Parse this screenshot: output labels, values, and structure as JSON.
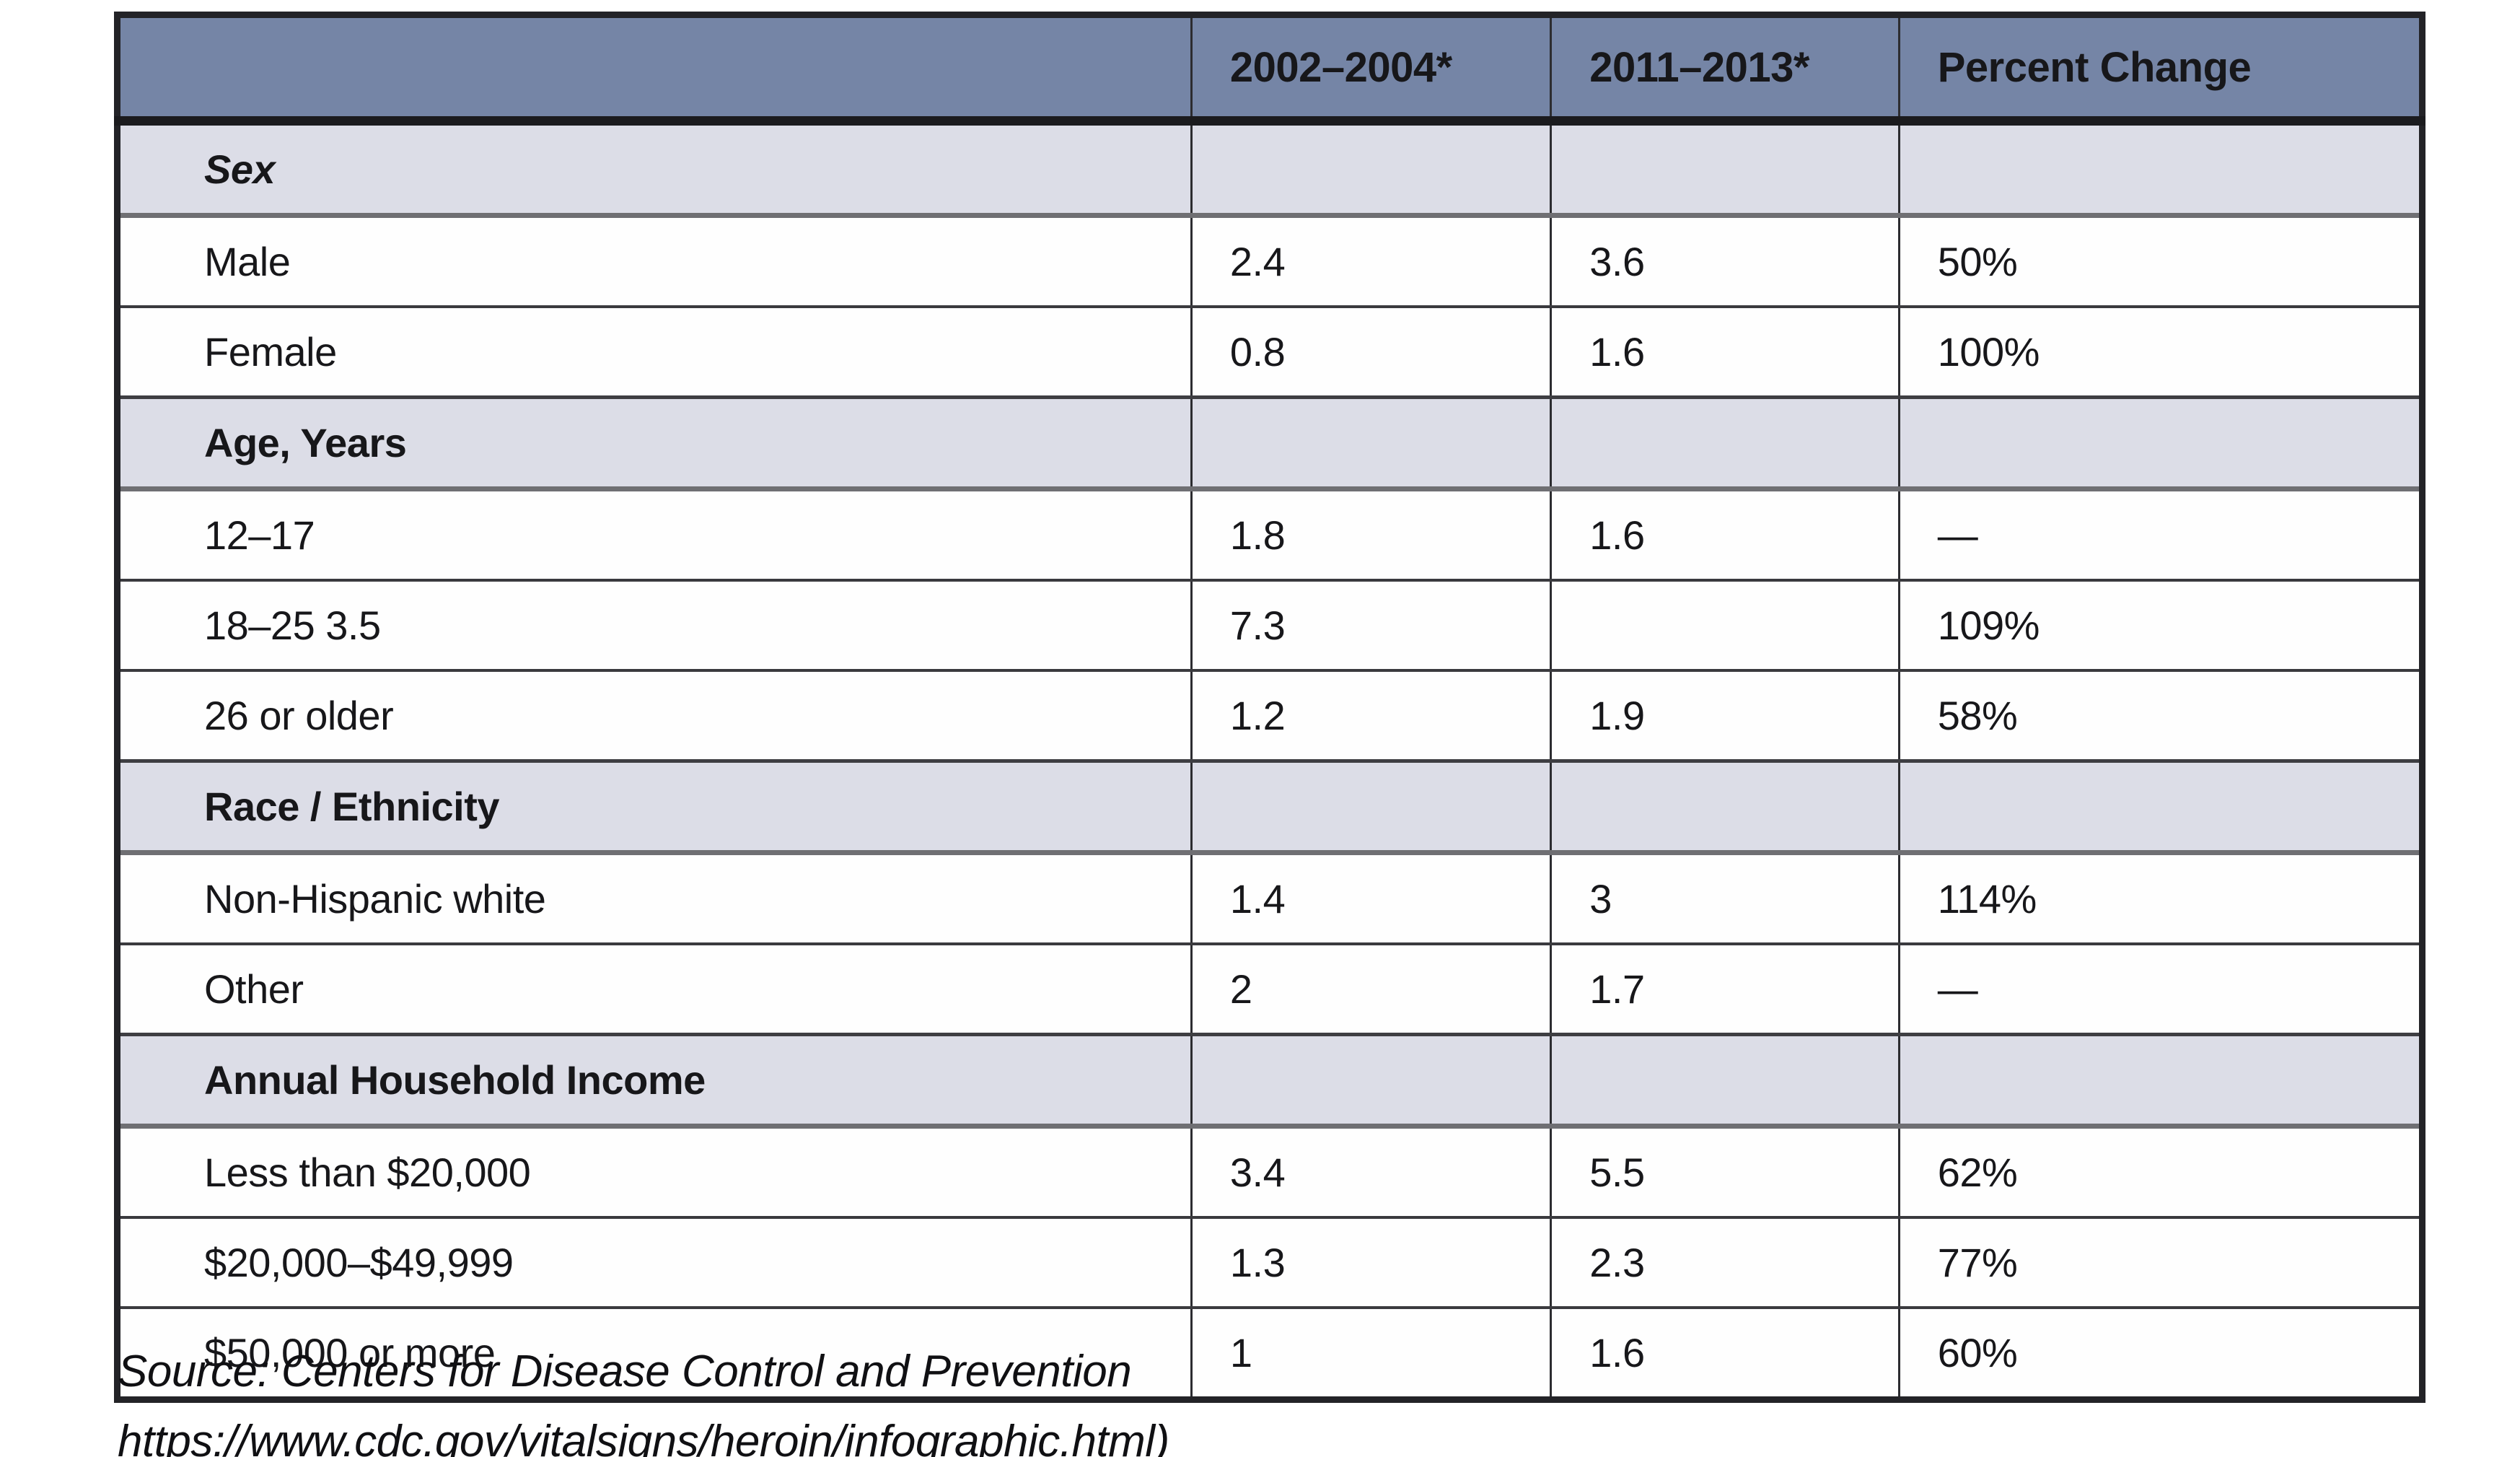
{
  "table": {
    "header": {
      "col0": "",
      "col1": "2002–2004*",
      "col2": "2011–2013*",
      "col3": "Percent Change"
    },
    "rows": [
      {
        "kind": "section",
        "label": "Sex",
        "c1": "",
        "c2": "",
        "c3": ""
      },
      {
        "kind": "data",
        "label": "Male",
        "c1": "2.4",
        "c2": "3.6",
        "c3": "50%"
      },
      {
        "kind": "data",
        "label": "Female",
        "c1": "0.8",
        "c2": "1.6",
        "c3": "100%"
      },
      {
        "kind": "section",
        "label": "Age, Years",
        "c1": "",
        "c2": "",
        "c3": ""
      },
      {
        "kind": "data",
        "label": "12–17",
        "c1": "1.8",
        "c2": "1.6",
        "c3": "—"
      },
      {
        "kind": "data",
        "label": "18–25  3.5",
        "c1": "7.3",
        "c2": "",
        "c3": "109%"
      },
      {
        "kind": "data",
        "label": "26 or older",
        "c1": "1.2",
        "c2": "1.9",
        "c3": "58%"
      },
      {
        "kind": "section",
        "label": "Race / Ethnicity",
        "c1": "",
        "c2": "",
        "c3": ""
      },
      {
        "kind": "data",
        "label": "Non-Hispanic white",
        "c1": "1.4",
        "c2": "3",
        "c3": "114%"
      },
      {
        "kind": "data",
        "label": "Other",
        "c1": "2",
        "c2": "1.7",
        "c3": "—"
      },
      {
        "kind": "section",
        "label": "Annual Household Income",
        "c1": "",
        "c2": "",
        "c3": ""
      },
      {
        "kind": "data",
        "label": "Less than $20,000",
        "c1": "3.4",
        "c2": "5.5",
        "c3": "62%"
      },
      {
        "kind": "data",
        "label": "$20,000–$49,999",
        "c1": "1.3",
        "c2": "2.3",
        "c3": "77%"
      },
      {
        "kind": "data",
        "label": "$50,000 or more",
        "c1": "1",
        "c2": "1.6",
        "c3": "60%"
      }
    ]
  },
  "source": {
    "line1": "Source: Centers for Disease Control and Prevention",
    "line2": "https://www.cdc.gov/vitalsigns/heroin/infographic.html)"
  },
  "colors": {
    "header_bg": "#7585a6",
    "section_bg": "#dcdde7",
    "row_bg": "#fefefe",
    "border_dark": "#2c2c30",
    "border_gray": "#6f6f73",
    "text": "#17171a"
  }
}
